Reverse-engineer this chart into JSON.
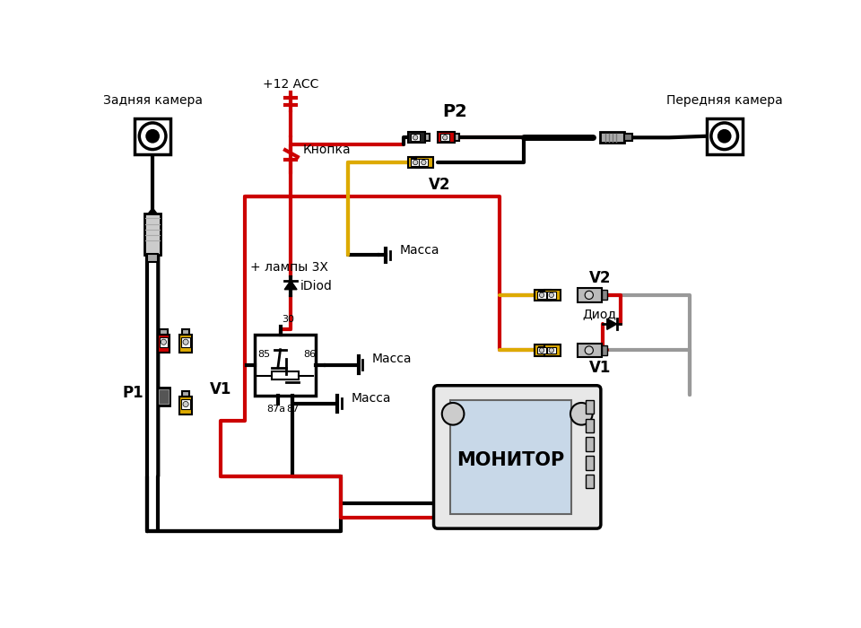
{
  "bg_color": "#ffffff",
  "BLACK": "#000000",
  "RED": "#cc0000",
  "YELLOW": "#ddaa00",
  "GRAY": "#999999",
  "LGRAY": "#bbbbbb",
  "labels": {
    "rear_camera": "Задняя камера",
    "front_camera": "Передняя камера",
    "button": "Кнопка",
    "power": "+12 ACC",
    "lamp_plus": "+ лампы 3Х",
    "idiod": "iDiod",
    "massa1": "Масса",
    "massa2": "Масса",
    "massa3": "Масса",
    "relay_30": "30",
    "relay_85": "85",
    "relay_86": "86",
    "relay_87a": "87а",
    "relay_87": "87",
    "p1": "P1",
    "p2": "P2",
    "v1_label": "V1",
    "v2_top": "V2",
    "v2_mid": "V2",
    "v1_mid": "V1",
    "monitor": "МОНИТОР",
    "diod": "Диод"
  }
}
